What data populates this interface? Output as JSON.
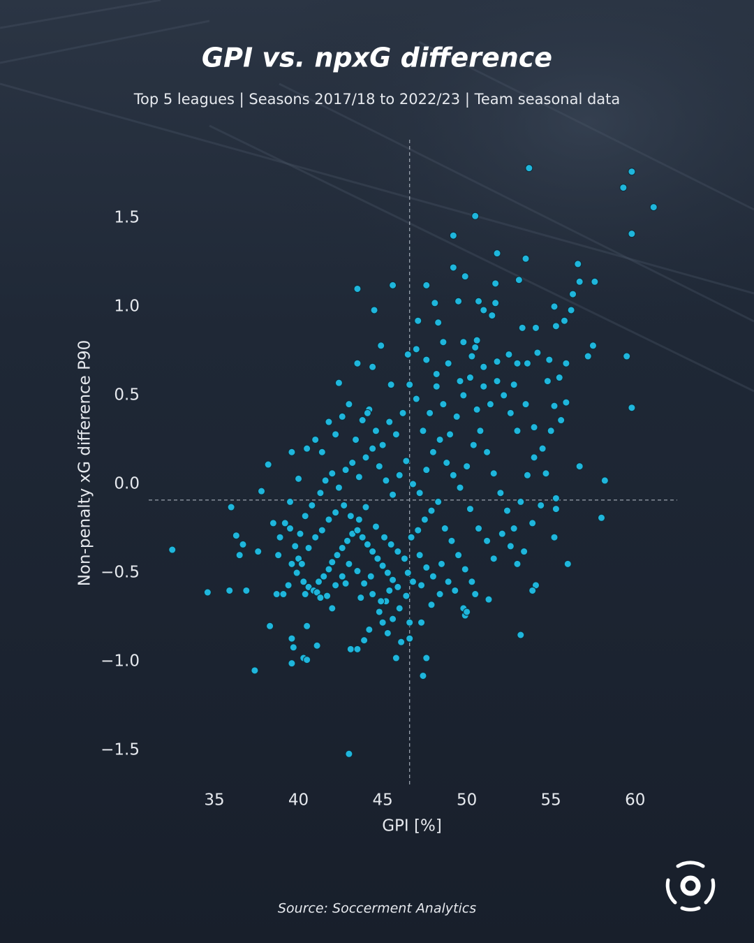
{
  "chart_data": {
    "type": "scatter",
    "title": "GPI vs. npxG difference",
    "subtitle": "Top 5 leagues | Seasons 2017/18 to 2022/23 | Team seasonal data",
    "x_label": "GPI [%]",
    "y_label": "Non-penalty xG difference P90",
    "source": "Source: Soccerment Analytics",
    "color": "#1fb6dc",
    "xlim": [
      31.1,
      62.5
    ],
    "ylim": [
      -1.7,
      1.94
    ],
    "xticks": [
      35,
      40,
      45,
      50,
      55,
      60
    ],
    "yticks": [
      {
        "value": -1.5,
        "label": "−1.5"
      },
      {
        "value": -1.0,
        "label": "−1.0"
      },
      {
        "value": -0.5,
        "label": "−0.5"
      },
      {
        "value": 0,
        "label": "0.0"
      },
      0.5,
      {
        "value": 1.0,
        "label": "1.0"
      },
      1.5
    ],
    "mean_lines": {
      "x": 46.6,
      "y": -0.09
    },
    "x": [
      32.5,
      34.6,
      35.9,
      36.9,
      37.4,
      36.0,
      36.3,
      36.5,
      36.7,
      37.8,
      38.2,
      38.3,
      37.6,
      38.7,
      39.6,
      39.6,
      39.7,
      40.3,
      40.5,
      40.5,
      41.1,
      43.0,
      43.1,
      43.5,
      44.2,
      45.8,
      47.4,
      47.6,
      46.6,
      46.1,
      53.2,
      53.7,
      59.8,
      59.3,
      61.1,
      59.8,
      50.5,
      49.2,
      51.8,
      53.5,
      53.1,
      56.6,
      56.7,
      57.6,
      56.3,
      56.2,
      55.2,
      55.8,
      55.3,
      54.1,
      53.3,
      49.2,
      49.9,
      51.7,
      47.6,
      45.6,
      43.5,
      44.5,
      48.1,
      49.5,
      50.7,
      51.7,
      51.0,
      51.5,
      48.3,
      44.9,
      48.6,
      49.8,
      50.6,
      50.5,
      57.5,
      57.2,
      59.5,
      59.8,
      58.2,
      58.0,
      56.0,
      55.9,
      56.7,
      55.5,
      55.3,
      55.2,
      54.1,
      53.9,
      51.3,
      49.9,
      49.8,
      50.5,
      39.2,
      39.5,
      39.8,
      40.0,
      40.2,
      39.9,
      40.3,
      40.6,
      40.9,
      41.2,
      41.5,
      41.8,
      42.0,
      42.3,
      42.6,
      42.9,
      43.2,
      43.5,
      43.8,
      44.1,
      44.4,
      44.7,
      45.0,
      45.3,
      45.6,
      45.9,
      44.3,
      43.9,
      43.5,
      43.0,
      42.6,
      42.2,
      41.7,
      41.1,
      40.6,
      41.0,
      41.4,
      41.8,
      42.2,
      42.7,
      43.1,
      43.6,
      44.0,
      44.6,
      45.1,
      45.5,
      45.9,
      46.3,
      46.7,
      47.1,
      47.5,
      47.9,
      48.3,
      48.7,
      49.1,
      49.5,
      49.9,
      50.3,
      48.5,
      48.0,
      47.6,
      47.2,
      46.8,
      46.4,
      46.0,
      45.6,
      45.2,
      44.8,
      44.4,
      38.5,
      38.8,
      39.1,
      39.4,
      40.4,
      40.8,
      41.3,
      41.6,
      42.0,
      42.4,
      42.8,
      43.2,
      43.6,
      44.0,
      44.4,
      44.8,
      45.2,
      45.6,
      46.0,
      46.4,
      46.8,
      47.2,
      47.6,
      48.0,
      48.4,
      48.8,
      49.2,
      49.6,
      50.0,
      50.4,
      50.8,
      51.2,
      51.6,
      52.0,
      52.4,
      52.8,
      53.2,
      53.6,
      54.0,
      53.0,
      52.6,
      52.2,
      51.8,
      51.4,
      51.0,
      50.6,
      50.2,
      49.8,
      49.4,
      49.0,
      48.6,
      48.2,
      47.8,
      47.4,
      47.0,
      46.6,
      46.2,
      45.8,
      45.4,
      45.0,
      44.6,
      44.2,
      43.8,
      43.4,
      43.0,
      42.6,
      42.2,
      41.8,
      41.4,
      41.0,
      40.5,
      40.0,
      39.6,
      39.5,
      42.4,
      43.5,
      44.4,
      46.5,
      47.0,
      47.6,
      48.2,
      48.9,
      49.6,
      50.3,
      51.0,
      51.8,
      52.5,
      53.0,
      53.6,
      54.2,
      54.8,
      55.2,
      55.6,
      55.0,
      54.5,
      54.0,
      53.5,
      52.8,
      54.9,
      55.9,
      50.2,
      50.7,
      51.2,
      51.6,
      52.1,
      52.6,
      53.0,
      53.4,
      53.9,
      54.4,
      54.7,
      55.3,
      49.3,
      48.9,
      48.4,
      47.9,
      47.3,
      46.5,
      45.4,
      44.9,
      43.7,
      42.8,
      42.0,
      41.3,
      40.4,
      39.6,
      38.9,
      40.1,
      47.3,
      45.0,
      45.3,
      46.6,
      47.1,
      45.5,
      44.1,
      43.9,
      50.0
    ],
    "values": [
      -0.37,
      -0.61,
      -0.6,
      -0.6,
      -1.05,
      -0.13,
      -0.29,
      -0.4,
      -0.34,
      -0.04,
      0.11,
      -0.8,
      -0.38,
      -0.62,
      -1.01,
      -0.87,
      -0.92,
      -0.98,
      -0.99,
      -0.8,
      -0.91,
      -1.52,
      -0.93,
      -0.93,
      -0.82,
      -0.98,
      -1.08,
      -0.98,
      -0.87,
      -0.89,
      -0.85,
      1.78,
      1.76,
      1.67,
      1.56,
      1.41,
      1.51,
      1.4,
      1.3,
      1.27,
      1.15,
      1.24,
      1.14,
      1.14,
      1.07,
      0.98,
      1.0,
      0.92,
      0.89,
      0.88,
      0.88,
      1.22,
      1.17,
      1.13,
      1.12,
      1.12,
      1.1,
      0.98,
      1.02,
      1.03,
      1.03,
      1.02,
      0.98,
      0.95,
      0.91,
      0.78,
      0.8,
      0.8,
      0.81,
      0.77,
      0.78,
      0.72,
      0.72,
      0.43,
      0.02,
      -0.19,
      -0.45,
      0.46,
      0.1,
      0.6,
      -0.14,
      -0.3,
      -0.57,
      -0.6,
      -0.65,
      -0.74,
      -0.7,
      -0.62,
      -0.22,
      -0.25,
      -0.35,
      -0.42,
      -0.45,
      -0.5,
      -0.55,
      -0.58,
      -0.6,
      -0.55,
      -0.52,
      -0.48,
      -0.44,
      -0.4,
      -0.36,
      -0.32,
      -0.28,
      -0.26,
      -0.3,
      -0.34,
      -0.38,
      -0.42,
      -0.46,
      -0.5,
      -0.54,
      -0.58,
      -0.52,
      -0.56,
      -0.49,
      -0.45,
      -0.52,
      -0.57,
      -0.63,
      -0.61,
      -0.36,
      -0.3,
      -0.26,
      -0.2,
      -0.16,
      -0.12,
      -0.18,
      -0.2,
      -0.13,
      -0.24,
      -0.3,
      -0.34,
      -0.38,
      -0.42,
      -0.3,
      -0.26,
      -0.2,
      -0.15,
      -0.1,
      -0.25,
      -0.32,
      -0.4,
      -0.48,
      -0.55,
      -0.45,
      -0.52,
      -0.47,
      -0.4,
      -0.55,
      -0.63,
      -0.7,
      -0.76,
      -0.66,
      -0.72,
      -0.62,
      -0.22,
      -0.4,
      -0.62,
      -0.57,
      -0.18,
      -0.12,
      -0.05,
      0.02,
      0.06,
      -0.02,
      0.08,
      0.12,
      0.04,
      0.15,
      0.2,
      0.1,
      0.02,
      -0.06,
      0.05,
      0.13,
      0.0,
      -0.05,
      0.08,
      0.18,
      0.25,
      0.12,
      0.05,
      -0.02,
      0.1,
      0.22,
      0.3,
      0.18,
      0.06,
      -0.05,
      -0.15,
      -0.25,
      -0.1,
      0.05,
      0.15,
      0.3,
      0.4,
      0.5,
      0.58,
      0.45,
      0.55,
      0.42,
      0.6,
      0.5,
      0.38,
      0.28,
      0.45,
      0.55,
      0.4,
      0.3,
      0.48,
      0.56,
      0.4,
      0.28,
      0.35,
      0.22,
      0.3,
      0.42,
      0.36,
      0.25,
      0.45,
      0.38,
      0.28,
      0.35,
      0.18,
      0.25,
      0.2,
      0.03,
      0.18,
      -0.1,
      0.57,
      0.68,
      0.66,
      0.73,
      0.76,
      0.7,
      0.62,
      0.68,
      0.58,
      0.72,
      0.66,
      0.69,
      0.73,
      0.68,
      0.68,
      0.74,
      0.58,
      0.44,
      0.36,
      0.3,
      0.2,
      0.32,
      0.45,
      0.56,
      0.7,
      0.68,
      -0.14,
      -0.25,
      -0.32,
      -0.42,
      -0.28,
      -0.35,
      -0.45,
      -0.38,
      -0.22,
      -0.12,
      0.06,
      -0.08,
      -0.6,
      -0.55,
      -0.62,
      -0.68,
      -0.57,
      -0.5,
      -0.6,
      -0.66,
      -0.64,
      -0.56,
      -0.7,
      -0.64,
      -0.62,
      -0.45,
      -0.3,
      -0.28,
      -0.78,
      -0.78,
      -0.84,
      -0.78,
      0.92,
      0.56,
      0.4,
      -0.88,
      -0.72
    ]
  }
}
